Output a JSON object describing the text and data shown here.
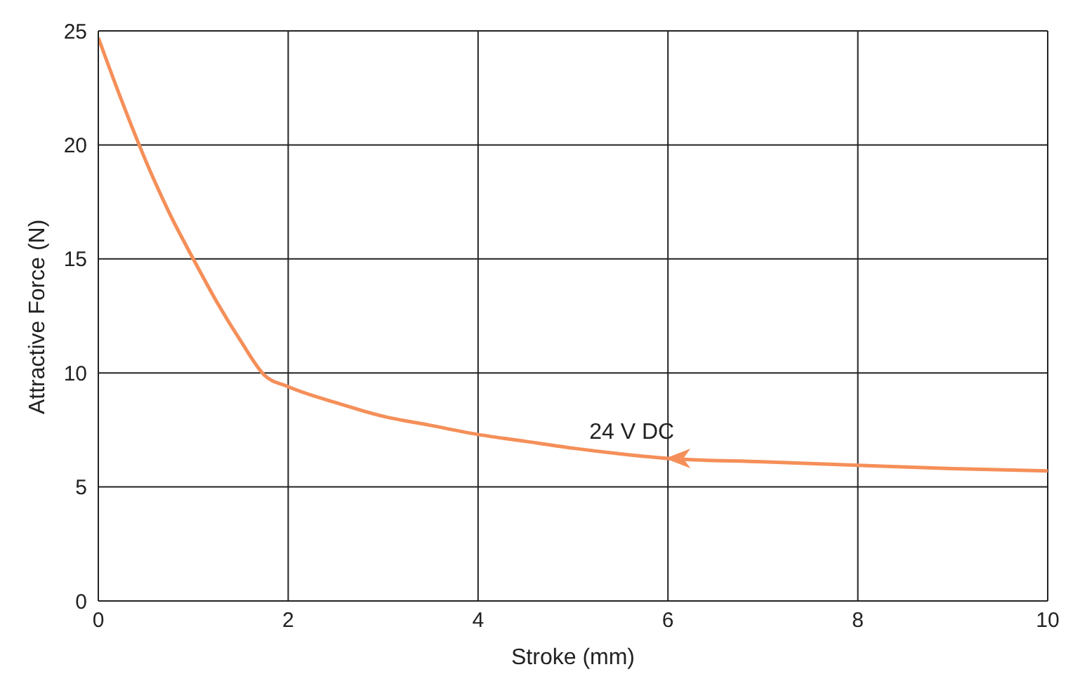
{
  "chart_data": {
    "type": "line",
    "xlabel": "Stroke (mm)",
    "ylabel": "Attractive Force (N)",
    "x": [
      0,
      0.25,
      0.5,
      0.75,
      1,
      1.25,
      1.5,
      1.75,
      2,
      2.5,
      3,
      3.5,
      4,
      4.5,
      5,
      5.5,
      6,
      7,
      8,
      9,
      10
    ],
    "series": [
      {
        "color": "#f58f59",
        "values": [
          24.7,
          21.9,
          19.3,
          17.0,
          15.0,
          13.1,
          11.4,
          9.9,
          9.4,
          8.7,
          8.1,
          7.7,
          7.3,
          7.0,
          6.7,
          6.45,
          6.25,
          6.1,
          5.95,
          5.8,
          5.7
        ]
      }
    ],
    "xlim": [
      0,
      10
    ],
    "xticks": [
      0,
      2,
      4,
      6,
      8,
      10
    ],
    "ylim": [
      0,
      25
    ],
    "yticks": [
      0,
      5,
      10,
      15,
      20,
      25
    ],
    "grid": true,
    "marker": "none",
    "line_style": "solid",
    "legend": false,
    "annotations": [
      {
        "text": "24 V DC",
        "x": 6,
        "y": 6.25
      }
    ]
  }
}
